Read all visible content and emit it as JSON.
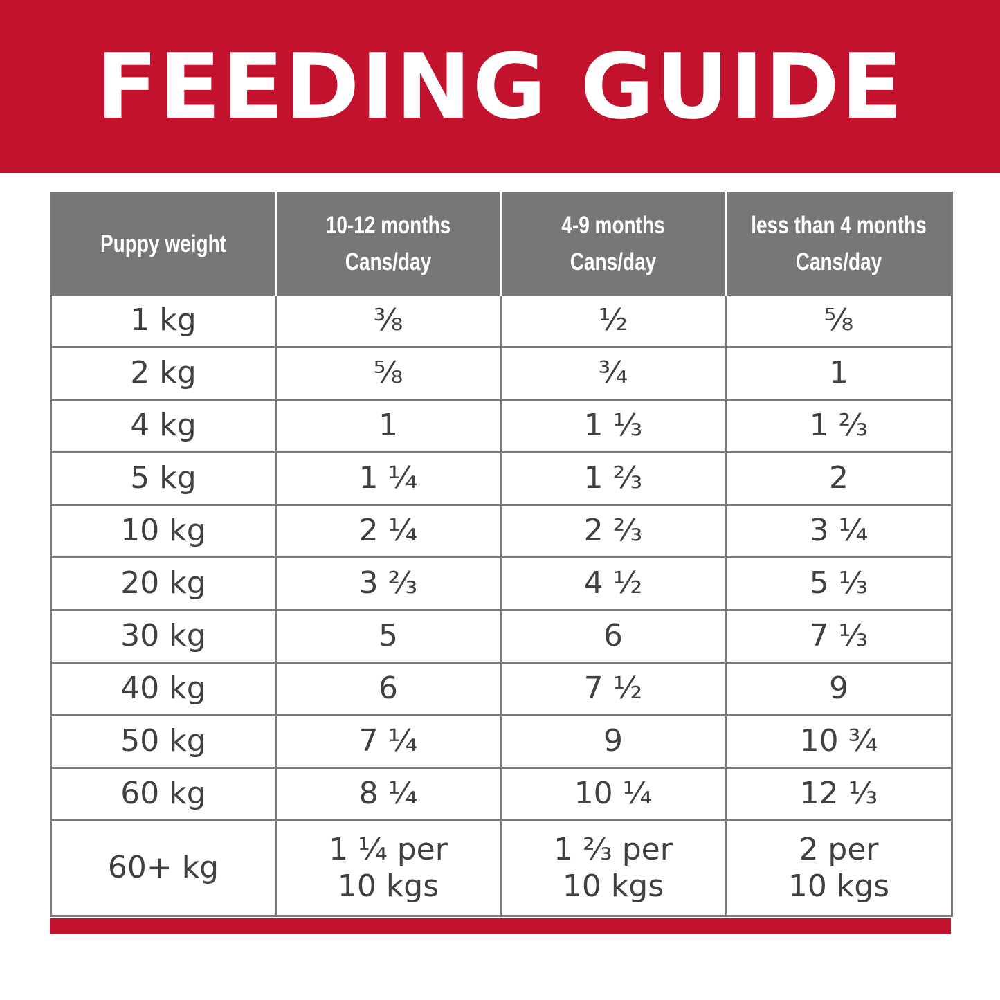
{
  "title": "FEEDING GUIDE",
  "colors": {
    "brand_red": "#c2122d",
    "header_gray": "#77777a",
    "border_gray": "#7a7a7d",
    "text_dark": "#404041"
  },
  "table": {
    "headers": [
      {
        "line1": "Puppy weight",
        "line2": ""
      },
      {
        "line1": "10-12 months",
        "line2": "Cans/day"
      },
      {
        "line1": "4-9 months",
        "line2": "Cans/day"
      },
      {
        "line1": "less than 4 months",
        "line2": "Cans/day"
      }
    ],
    "rows": [
      {
        "weight": "1 kg",
        "m10_12": "⅜",
        "m4_9": "½",
        "lt4": "⅝"
      },
      {
        "weight": "2 kg",
        "m10_12": "⅝",
        "m4_9": "¾",
        "lt4": "1"
      },
      {
        "weight": "4 kg",
        "m10_12": "1",
        "m4_9": "1 ⅓",
        "lt4": "1 ⅔"
      },
      {
        "weight": "5 kg",
        "m10_12": "1 ¼",
        "m4_9": "1 ⅔",
        "lt4": "2"
      },
      {
        "weight": "10 kg",
        "m10_12": "2 ¼",
        "m4_9": "2 ⅔",
        "lt4": "3 ¼"
      },
      {
        "weight": "20 kg",
        "m10_12": "3 ⅔",
        "m4_9": "4 ½",
        "lt4": "5 ⅓"
      },
      {
        "weight": "30 kg",
        "m10_12": "5",
        "m4_9": "6",
        "lt4": "7 ⅓"
      },
      {
        "weight": "40 kg",
        "m10_12": "6",
        "m4_9": "7 ½",
        "lt4": "9"
      },
      {
        "weight": "50 kg",
        "m10_12": "7 ¼",
        "m4_9": "9",
        "lt4": "10 ¾"
      },
      {
        "weight": "60 kg",
        "m10_12": "8 ¼",
        "m4_9": "10 ¼",
        "lt4": "12 ⅓"
      }
    ],
    "last_row": {
      "weight": "60+ kg",
      "m10_12": {
        "line1": "1 ¼ per",
        "line2": "10 kgs"
      },
      "m4_9": {
        "line1": "1 ⅔ per",
        "line2": "10 kgs"
      },
      "lt4": {
        "line1": "2 per",
        "line2": "10 kgs"
      }
    }
  }
}
